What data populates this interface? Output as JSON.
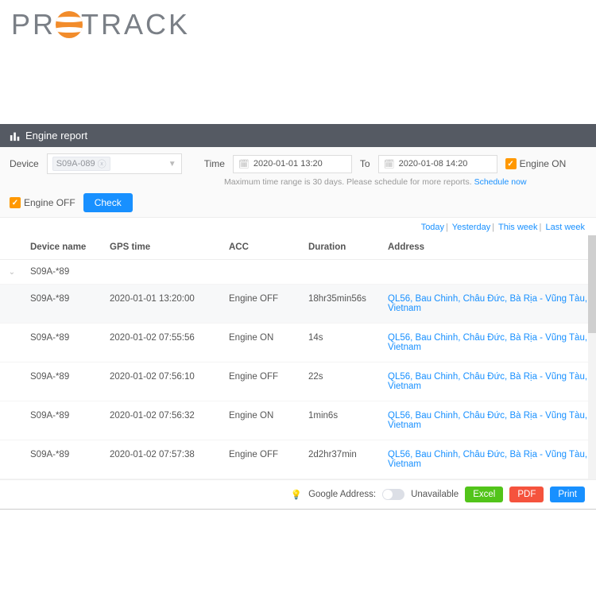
{
  "brand": {
    "pre": "PR",
    "post": "TRACK"
  },
  "header": {
    "title": "Engine report"
  },
  "filter": {
    "device_label": "Device",
    "device_tag": "S09A-089",
    "time_label": "Time",
    "from_value": "2020-01-01 13:20",
    "to_label": "To",
    "to_value": "2020-01-08 14:20",
    "engine_on_label": "Engine ON",
    "engine_off_label": "Engine OFF",
    "check_label": "Check",
    "hint_text": "Maximum time range is 30 days. Please schedule for more reports. ",
    "hint_link": "Schedule now"
  },
  "quick": {
    "today": "Today",
    "yesterday": "Yesterday",
    "this_week": "This week",
    "last_week": "Last week"
  },
  "columns": {
    "device": "Device name",
    "gps": "GPS time",
    "acc": "ACC",
    "duration": "Duration",
    "address": "Address"
  },
  "group_label": "S09A-*89",
  "rows": [
    {
      "device": "S09A-*89",
      "gps": "2020-01-01 13:20:00",
      "acc": "Engine OFF",
      "duration": "18hr35min56s",
      "address": "QL56, Bau Chinh, Châu Đức, Bà Rịa - Vũng Tàu, Vietnam"
    },
    {
      "device": "S09A-*89",
      "gps": "2020-01-02 07:55:56",
      "acc": "Engine ON",
      "duration": "14s",
      "address": "QL56, Bau Chinh, Châu Đức, Bà Rịa - Vũng Tàu, Vietnam"
    },
    {
      "device": "S09A-*89",
      "gps": "2020-01-02 07:56:10",
      "acc": "Engine OFF",
      "duration": "22s",
      "address": "QL56, Bau Chinh, Châu Đức, Bà Rịa - Vũng Tàu, Vietnam"
    },
    {
      "device": "S09A-*89",
      "gps": "2020-01-02 07:56:32",
      "acc": "Engine ON",
      "duration": "1min6s",
      "address": "QL56, Bau Chinh, Châu Đức, Bà Rịa - Vũng Tàu, Vietnam"
    },
    {
      "device": "S09A-*89",
      "gps": "2020-01-02 07:57:38",
      "acc": "Engine OFF",
      "duration": "2d2hr37min",
      "address": "QL56, Bau Chinh, Châu Đức, Bà Rịa - Vũng Tàu, Vietnam"
    }
  ],
  "footer": {
    "google_label": "Google Address:",
    "unavailable": "Unavailable",
    "excel": "Excel",
    "pdf": "PDF",
    "print": "Print"
  },
  "colors": {
    "primary": "#1890ff",
    "accent": "#ff9800",
    "excel": "#52c41a",
    "pdf": "#f5533d",
    "header": "#555a63"
  }
}
